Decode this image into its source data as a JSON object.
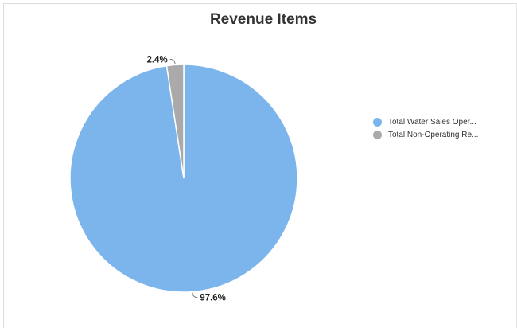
{
  "chart_data": {
    "type": "pie",
    "title": "Revenue Items",
    "slices": [
      {
        "name": "Total Water Sales Oper...",
        "value": 97.6,
        "label": "97.6%",
        "color": "#7cb5ec"
      },
      {
        "name": "Total Non-Operating Re...",
        "value": 2.4,
        "label": "2.4%",
        "color": "#aaaaaa"
      }
    ],
    "legend_position": "right"
  }
}
